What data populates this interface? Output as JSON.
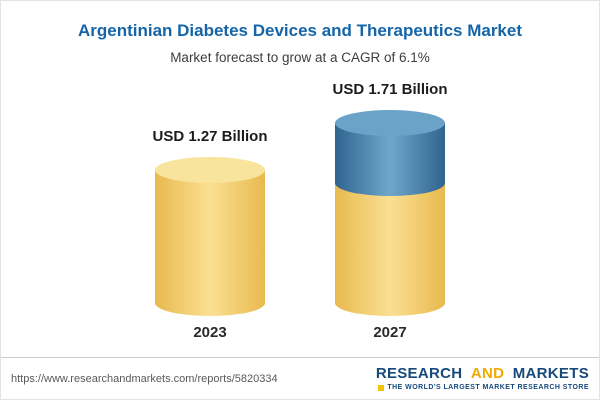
{
  "header": {
    "title": "Argentinian Diabetes Devices and Therapeutics Market",
    "subtitle": "Market forecast to grow at a CAGR of 6.1%"
  },
  "chart_data": {
    "type": "bar",
    "variant": "cylinder",
    "title": "Argentinian Diabetes Devices and Therapeutics Market",
    "subtitle": "Market forecast to grow at a CAGR of 6.1%",
    "categories": [
      "2023",
      "2027"
    ],
    "values": [
      1.27,
      1.71
    ],
    "unit": "USD Billion",
    "value_labels": [
      "USD 1.27 Billion",
      "USD 1.71 Billion"
    ],
    "cagr": "6.1%",
    "ylim": [
      0,
      1.71
    ],
    "stacked_2027": {
      "base": 1.27,
      "growth": 0.44
    },
    "legend": "none",
    "grid": "off"
  },
  "colors": {
    "title_blue": "#1565A8",
    "bar_edge": "#E8BA4E",
    "bar_center": "#FBDF93",
    "bar_top": "#F9E49E",
    "accent_edge": "#2F6490",
    "accent_center": "#6FA7CB",
    "accent_top": "#6BA3C8",
    "logo_navy": "#17497B",
    "logo_gold": "#F2A900"
  },
  "footer": {
    "url": "https://www.researchandmarkets.com/reports/5820334",
    "logo": {
      "part1": "RESEARCH",
      "part2": "AND",
      "part3": "MARKETS",
      "tagline": "THE WORLD'S LARGEST MARKET RESEARCH STORE"
    }
  }
}
